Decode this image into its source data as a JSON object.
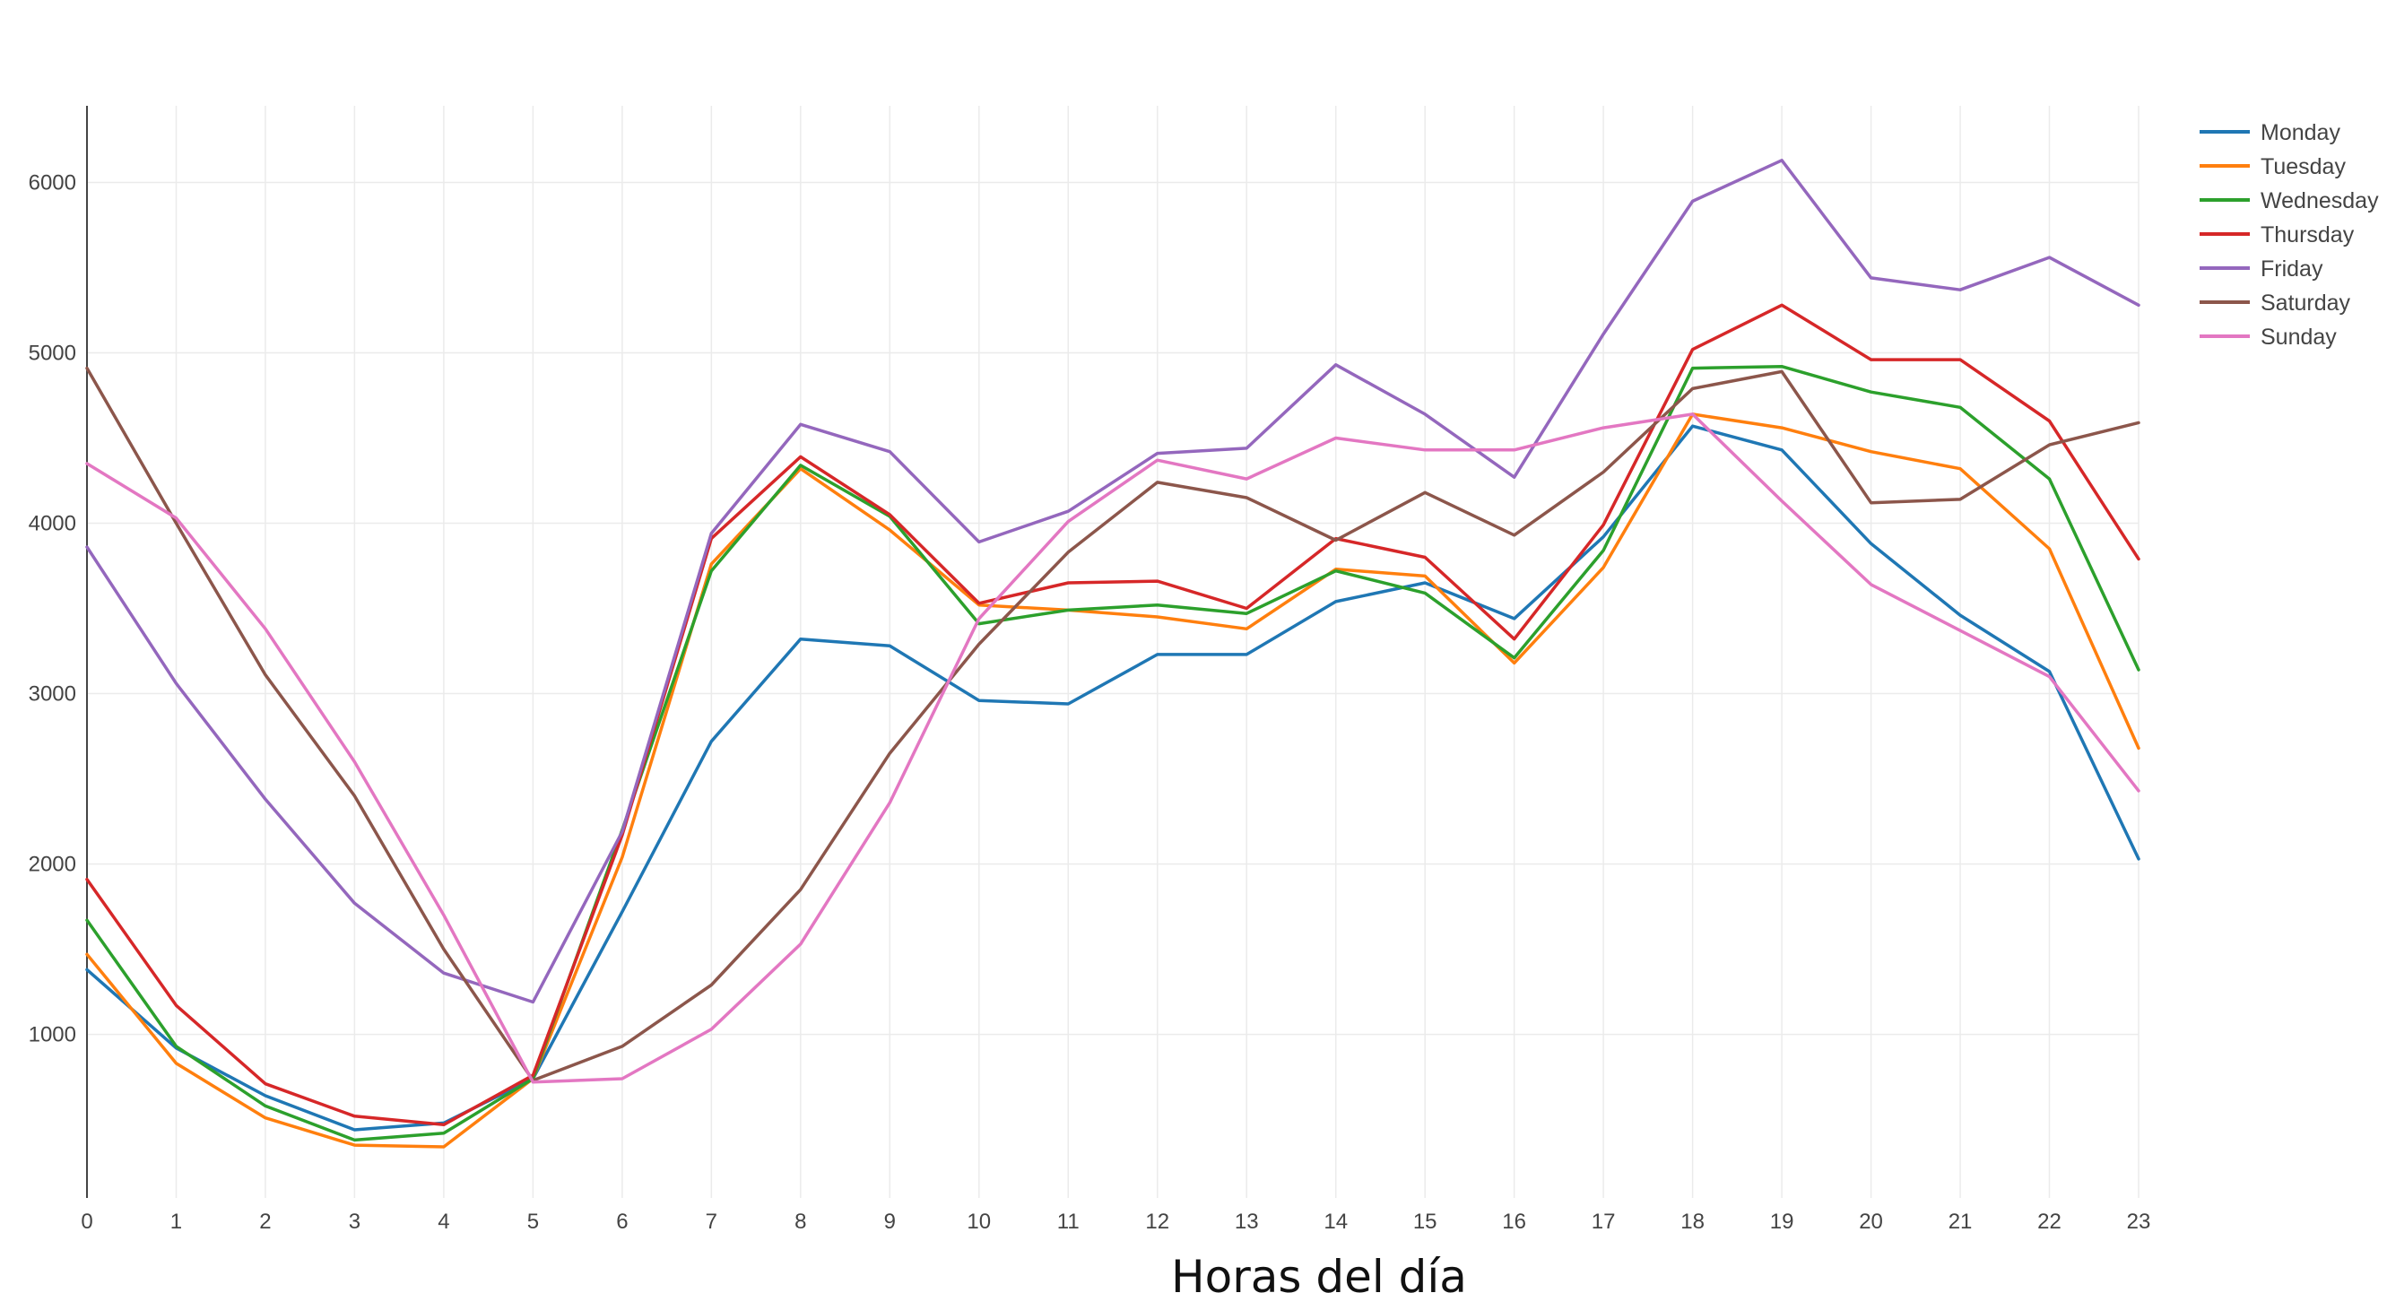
{
  "chart_data": {
    "type": "line",
    "title": "",
    "xlabel": "Horas del día",
    "ylabel": "",
    "x": [
      0,
      1,
      2,
      3,
      4,
      5,
      6,
      7,
      8,
      9,
      10,
      11,
      12,
      13,
      14,
      15,
      16,
      17,
      18,
      19,
      20,
      21,
      22,
      23
    ],
    "xlim": [
      0,
      23
    ],
    "ylim": [
      40,
      6450
    ],
    "yticks": [
      1000,
      2000,
      3000,
      4000,
      5000,
      6000
    ],
    "grid": true,
    "legend_position": "top-right",
    "series": [
      {
        "name": "Monday",
        "color": "#1f77b4",
        "values": [
          1380,
          920,
          640,
          440,
          480,
          740,
          1720,
          2720,
          3320,
          3280,
          2960,
          2940,
          3230,
          3230,
          3540,
          3650,
          3440,
          3920,
          4570,
          4430,
          3880,
          3460,
          3130,
          2030
        ]
      },
      {
        "name": "Tuesday",
        "color": "#ff7f0e",
        "values": [
          1470,
          830,
          510,
          350,
          340,
          740,
          2040,
          3760,
          4320,
          3960,
          3520,
          3490,
          3450,
          3380,
          3730,
          3690,
          3180,
          3740,
          4640,
          4560,
          4420,
          4320,
          3850,
          2680
        ]
      },
      {
        "name": "Wednesday",
        "color": "#2ca02c",
        "values": [
          1670,
          930,
          580,
          380,
          420,
          740,
          2200,
          3720,
          4340,
          4040,
          3410,
          3490,
          3520,
          3470,
          3720,
          3590,
          3210,
          3840,
          4910,
          4920,
          4770,
          4680,
          4260,
          3140
        ]
      },
      {
        "name": "Thursday",
        "color": "#d62728",
        "values": [
          1910,
          1170,
          710,
          520,
          470,
          760,
          2170,
          3910,
          4390,
          4050,
          3530,
          3650,
          3660,
          3500,
          3910,
          3800,
          3320,
          3990,
          5020,
          5280,
          4960,
          4960,
          4600,
          3790
        ]
      },
      {
        "name": "Friday",
        "color": "#9467bd",
        "values": [
          3860,
          3060,
          2380,
          1770,
          1360,
          1190,
          2190,
          3940,
          4580,
          4420,
          3890,
          4070,
          4410,
          4440,
          4930,
          4640,
          4270,
          5110,
          5890,
          6130,
          5440,
          5370,
          5560,
          5280
        ]
      },
      {
        "name": "Saturday",
        "color": "#8c564b",
        "values": [
          4910,
          4000,
          3110,
          2400,
          1500,
          730,
          930,
          1290,
          1850,
          2650,
          3290,
          3830,
          4240,
          4150,
          3900,
          4180,
          3930,
          4300,
          4790,
          4890,
          4120,
          4140,
          4460,
          4590
        ]
      },
      {
        "name": "Sunday",
        "color": "#e377c2",
        "values": [
          4350,
          4030,
          3380,
          2600,
          1700,
          720,
          740,
          1030,
          1530,
          2360,
          3440,
          4010,
          4370,
          4260,
          4500,
          4430,
          4430,
          4560,
          4640,
          4130,
          3640,
          3370,
          3100,
          2430
        ]
      }
    ]
  }
}
